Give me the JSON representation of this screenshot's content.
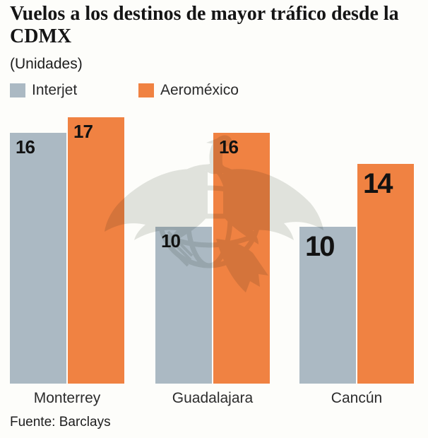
{
  "header": {
    "title": "Vuelos a los destinos de mayor tráfico desde la CDMX",
    "subtitle": "(Unidades)"
  },
  "chart_data": {
    "type": "bar",
    "categories": [
      "Monterrey",
      "Guadalajara",
      "Cancún"
    ],
    "series": [
      {
        "name": "Interjet",
        "color": "#abb9c3",
        "values": [
          16,
          10,
          10
        ]
      },
      {
        "name": "Aeroméxico",
        "color": "#f08242",
        "values": [
          17,
          16,
          14
        ]
      }
    ],
    "unit_label": "(Unidades)",
    "value_labels_shown": true,
    "ylim": [
      0,
      17
    ],
    "grid": false,
    "legend_position": "top-left"
  },
  "footer": {
    "source": "Fuente: Barclays"
  },
  "watermark": {
    "name": "eagle-globe-logo",
    "color": "#e2e4e1"
  },
  "colors": {
    "background": "#fdfdfa",
    "title_text": "#151515",
    "bar_gray": "#abb9c3",
    "bar_orange": "#f08242"
  }
}
